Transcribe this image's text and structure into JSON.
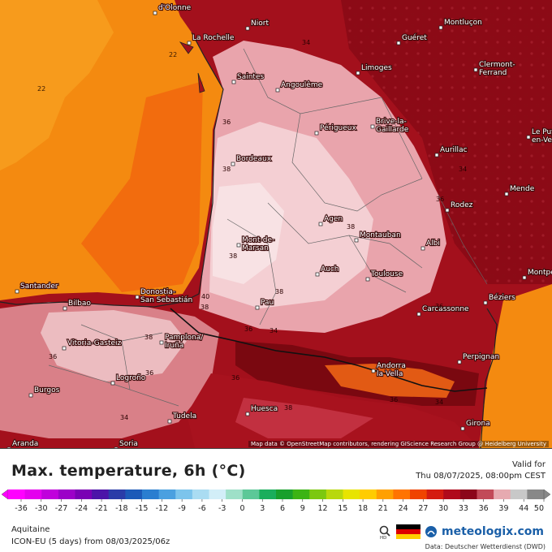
{
  "map": {
    "cities": [
      {
        "name": "d'Olonne"
      },
      {
        "name": "Niort"
      },
      {
        "name": "La Rochelle"
      },
      {
        "name": "Guéret"
      },
      {
        "name": "Montluçon"
      },
      {
        "name": "Saintes"
      },
      {
        "name": "Angoulême"
      },
      {
        "name": "Limoges"
      },
      {
        "name": "Clermont-Ferrand"
      },
      {
        "name": "Périgueux"
      },
      {
        "name": "Brive-la-Gaillarde"
      },
      {
        "name": "Aurillac"
      },
      {
        "name": "Le Puy-en-Velay"
      },
      {
        "name": "Bordeaux"
      },
      {
        "name": "Mende"
      },
      {
        "name": "Rodez"
      },
      {
        "name": "Agen"
      },
      {
        "name": "Montauban"
      },
      {
        "name": "Mont-de-Marsan"
      },
      {
        "name": "Albi"
      },
      {
        "name": "Montpellier"
      },
      {
        "name": "Auch"
      },
      {
        "name": "Toulouse"
      },
      {
        "name": "Santander"
      },
      {
        "name": "Donostia-San Sebastián"
      },
      {
        "name": "Bilbao"
      },
      {
        "name": "Pau"
      },
      {
        "name": "Carcassonne"
      },
      {
        "name": "Béziers"
      },
      {
        "name": "Vitoria-Gasteiz"
      },
      {
        "name": "Pamplona/Iruña"
      },
      {
        "name": "Andorra la Vella"
      },
      {
        "name": "Perpignan"
      },
      {
        "name": "Logroño"
      },
      {
        "name": "Burgos"
      },
      {
        "name": "Huesca"
      },
      {
        "name": "Tudela"
      },
      {
        "name": "Girona"
      },
      {
        "name": "Aranda"
      },
      {
        "name": "Soria"
      }
    ],
    "contour_labels": [
      "22",
      "22",
      "34",
      "36",
      "38",
      "38",
      "36",
      "38",
      "34",
      "36",
      "36",
      "40",
      "38",
      "38",
      "36",
      "36",
      "34",
      "38",
      "38",
      "36",
      "34",
      "36",
      "34"
    ],
    "attribution": "Map data © OpenStreetMap contributors, rendering GIScience Research Group @ Heidelberg University"
  },
  "legend": {
    "title": "Max. temperature, 6h (°C)",
    "valid_label": "Valid for",
    "valid_time": "Thu 08/07/2025, 08:00pm CEST",
    "ticks": [
      "-36",
      "-30",
      "-27",
      "-24",
      "-21",
      "-18",
      "-15",
      "-12",
      "-9",
      "-6",
      "-3",
      "0",
      "3",
      "6",
      "9",
      "12",
      "15",
      "18",
      "21",
      "24",
      "27",
      "30",
      "33",
      "36",
      "39",
      "44",
      "50"
    ],
    "colors": [
      "#ff00ff",
      "#e400ee",
      "#c000dc",
      "#9c00c8",
      "#7a00b4",
      "#4c14a8",
      "#2a3ca8",
      "#1c5ab8",
      "#2a7ed0",
      "#4aa0e0",
      "#7cc4ec",
      "#aadcf2",
      "#d2eef8",
      "#9ee0c8",
      "#5cc898",
      "#1aae5c",
      "#18a02c",
      "#3cb414",
      "#7cc810",
      "#b8d80c",
      "#e8e400",
      "#ffcc00",
      "#ffa000",
      "#ff7400",
      "#f04400",
      "#d41c10",
      "#b00a1c",
      "#8c061a",
      "#c24a58",
      "#e6aab0",
      "#c8c8c8",
      "#888888"
    ]
  },
  "footer": {
    "region": "Aquitaine",
    "model_run": "ICON-EU (5 days) from 08/03/2025/06z",
    "brand": "meteologix.com",
    "data_source": "Data: Deutscher Wetterdienst (DWD)"
  }
}
